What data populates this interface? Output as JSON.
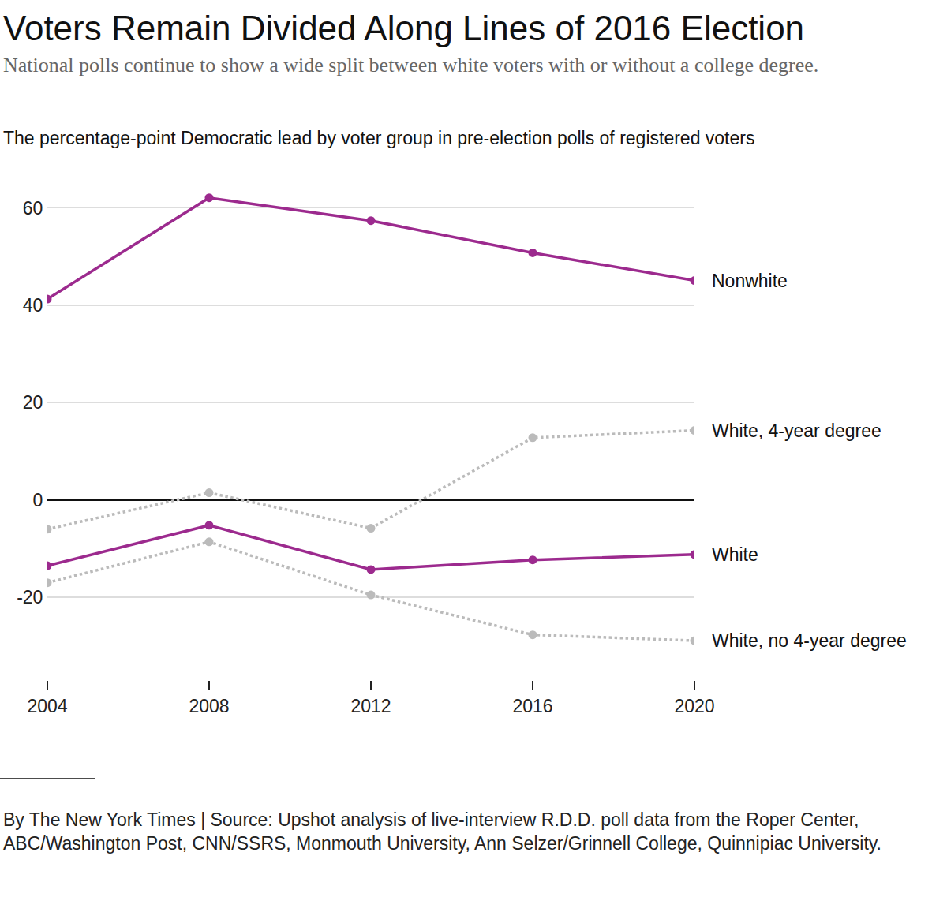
{
  "chart_data": {
    "type": "line",
    "title": "Voters Remain Divided Along Lines of 2016 Election",
    "subtitle": "National polls continue to show a wide split between white voters with or without a college degree.",
    "ylabel": "The percentage-point Democratic lead by voter group in pre-election polls of registered voters",
    "caption": "By The New York Times | Source: Upshot analysis of live-interview R.D.D. poll data from the Roper Center, ABC/Washington Post, CNN/SSRS, Monmouth University, Ann Selzer/Grinnell College, Quinnipiac University.",
    "x": [
      2004,
      2008,
      2012,
      2016,
      2020
    ],
    "xlim": [
      2004,
      2020
    ],
    "xticks": [
      2004,
      2008,
      2012,
      2016,
      2020
    ],
    "ylim": [
      -37,
      64
    ],
    "yticks": [
      -20,
      0,
      20,
      40,
      60
    ],
    "grid": true,
    "marker": "circle",
    "series": [
      {
        "name": "Nonwhite",
        "color": "#9c2a8e",
        "line_style": "solid",
        "values": [
          41.3,
          62.1,
          57.4,
          50.8,
          45.1
        ]
      },
      {
        "name": "White, 4-year degree",
        "color": "#bbbbbb",
        "line_style": "dotted",
        "values": [
          -6.0,
          1.5,
          -5.8,
          12.8,
          14.3
        ]
      },
      {
        "name": "White",
        "color": "#9c2a8e",
        "line_style": "solid",
        "values": [
          -13.5,
          -5.2,
          -14.3,
          -12.3,
          -11.2
        ]
      },
      {
        "name": "White, no 4-year degree",
        "color": "#bbbbbb",
        "line_style": "dotted",
        "values": [
          -17.0,
          -8.6,
          -19.5,
          -27.7,
          -28.9
        ]
      }
    ]
  }
}
